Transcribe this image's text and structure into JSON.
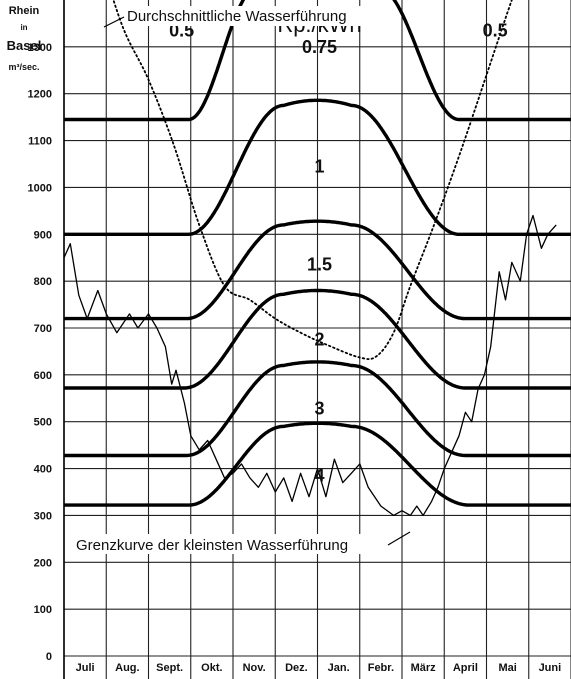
{
  "chart_data": {
    "type": "line",
    "axis_title_lines": [
      "Rhein",
      "in",
      "Basel",
      "m³/sec."
    ],
    "x_categories": [
      "Juli",
      "Aug.",
      "Sept.",
      "Okt.",
      "Nov.",
      "Dez.",
      "Jan.",
      "Febr.",
      "März",
      "April",
      "Mai",
      "Juni"
    ],
    "ylim": [
      0,
      1400
    ],
    "y_ticks": [
      0,
      100,
      200,
      300,
      400,
      500,
      600,
      700,
      800,
      900,
      1000,
      1100,
      1200,
      1300
    ],
    "y_tick_labels": [
      "0",
      "100",
      "200",
      "300",
      "400",
      "500",
      "600",
      "700",
      "800",
      "900",
      "1000",
      "1100",
      "1200",
      "1300"
    ],
    "grid": true,
    "tariff_unit_label": "Rp./kWh",
    "tariff_curves": [
      {
        "label": "0.75",
        "base": 1145,
        "peak": 1425,
        "rise_start": 2.95,
        "rise_end": 4.55,
        "fall_start": 7.45,
        "fall_end": 9.35
      },
      {
        "label": "1",
        "base": 900,
        "peak": 1175,
        "rise_start": 2.95,
        "rise_end": 5.2,
        "fall_start": 6.8,
        "fall_end": 9.35
      },
      {
        "label": "1.5",
        "base": 720,
        "peak": 920,
        "rise_start": 2.9,
        "rise_end": 5.2,
        "fall_start": 6.8,
        "fall_end": 9.5
      },
      {
        "label": "2",
        "base": 572,
        "peak": 772,
        "rise_start": 2.85,
        "rise_end": 5.2,
        "fall_start": 6.8,
        "fall_end": 9.5
      },
      {
        "label": "3",
        "base": 428,
        "peak": 620,
        "rise_start": 2.9,
        "rise_end": 5.2,
        "fall_start": 6.8,
        "fall_end": 9.5
      },
      {
        "label": "4",
        "base": 322,
        "peak": 490,
        "rise_start": 2.95,
        "rise_end": 5.2,
        "fall_start": 6.8,
        "fall_end": 9.6
      }
    ],
    "side_labels": [
      "0.5",
      "0.5"
    ],
    "average_flow": {
      "label": "Durchschnittliche Wasserführung",
      "x": [
        0.9,
        1.4,
        2.0,
        2.6,
        3.2,
        3.8,
        4.4,
        5.0,
        5.6,
        6.2,
        7.0,
        7.4,
        7.8,
        8.2,
        8.8,
        9.4,
        10.0,
        10.6,
        11.1
      ],
      "y": [
        1480,
        1340,
        1230,
        1090,
        920,
        790,
        760,
        720,
        690,
        665,
        637,
        640,
        690,
        790,
        930,
        1080,
        1240,
        1400,
        1520
      ]
    },
    "minimum_flow": {
      "label": "Grenzkurve der kleinsten Wasserführung",
      "x": [
        0.0,
        0.15,
        0.35,
        0.55,
        0.8,
        1.0,
        1.25,
        1.55,
        1.75,
        2.0,
        2.2,
        2.4,
        2.55,
        2.65,
        2.85,
        3.0,
        3.2,
        3.4,
        3.6,
        3.8,
        4.0,
        4.2,
        4.4,
        4.6,
        4.8,
        5.0,
        5.2,
        5.4,
        5.6,
        5.8,
        6.0,
        6.2,
        6.4,
        6.6,
        6.8,
        7.0,
        7.2,
        7.5,
        7.8,
        8.0,
        8.2,
        8.35,
        8.5,
        8.7,
        8.85,
        9.0,
        9.2,
        9.35,
        9.5,
        9.65,
        9.8,
        9.95,
        10.1,
        10.3,
        10.45,
        10.6,
        10.8,
        10.95,
        11.1,
        11.3,
        11.45,
        11.65
      ],
      "y": [
        850,
        880,
        770,
        720,
        780,
        730,
        690,
        730,
        700,
        730,
        700,
        660,
        580,
        610,
        540,
        470,
        440,
        460,
        420,
        380,
        390,
        410,
        380,
        360,
        390,
        350,
        380,
        330,
        390,
        340,
        400,
        340,
        420,
        370,
        390,
        410,
        360,
        320,
        300,
        310,
        300,
        320,
        300,
        330,
        360,
        400,
        440,
        470,
        520,
        500,
        570,
        600,
        660,
        820,
        760,
        840,
        800,
        900,
        940,
        870,
        900,
        920
      ]
    }
  }
}
